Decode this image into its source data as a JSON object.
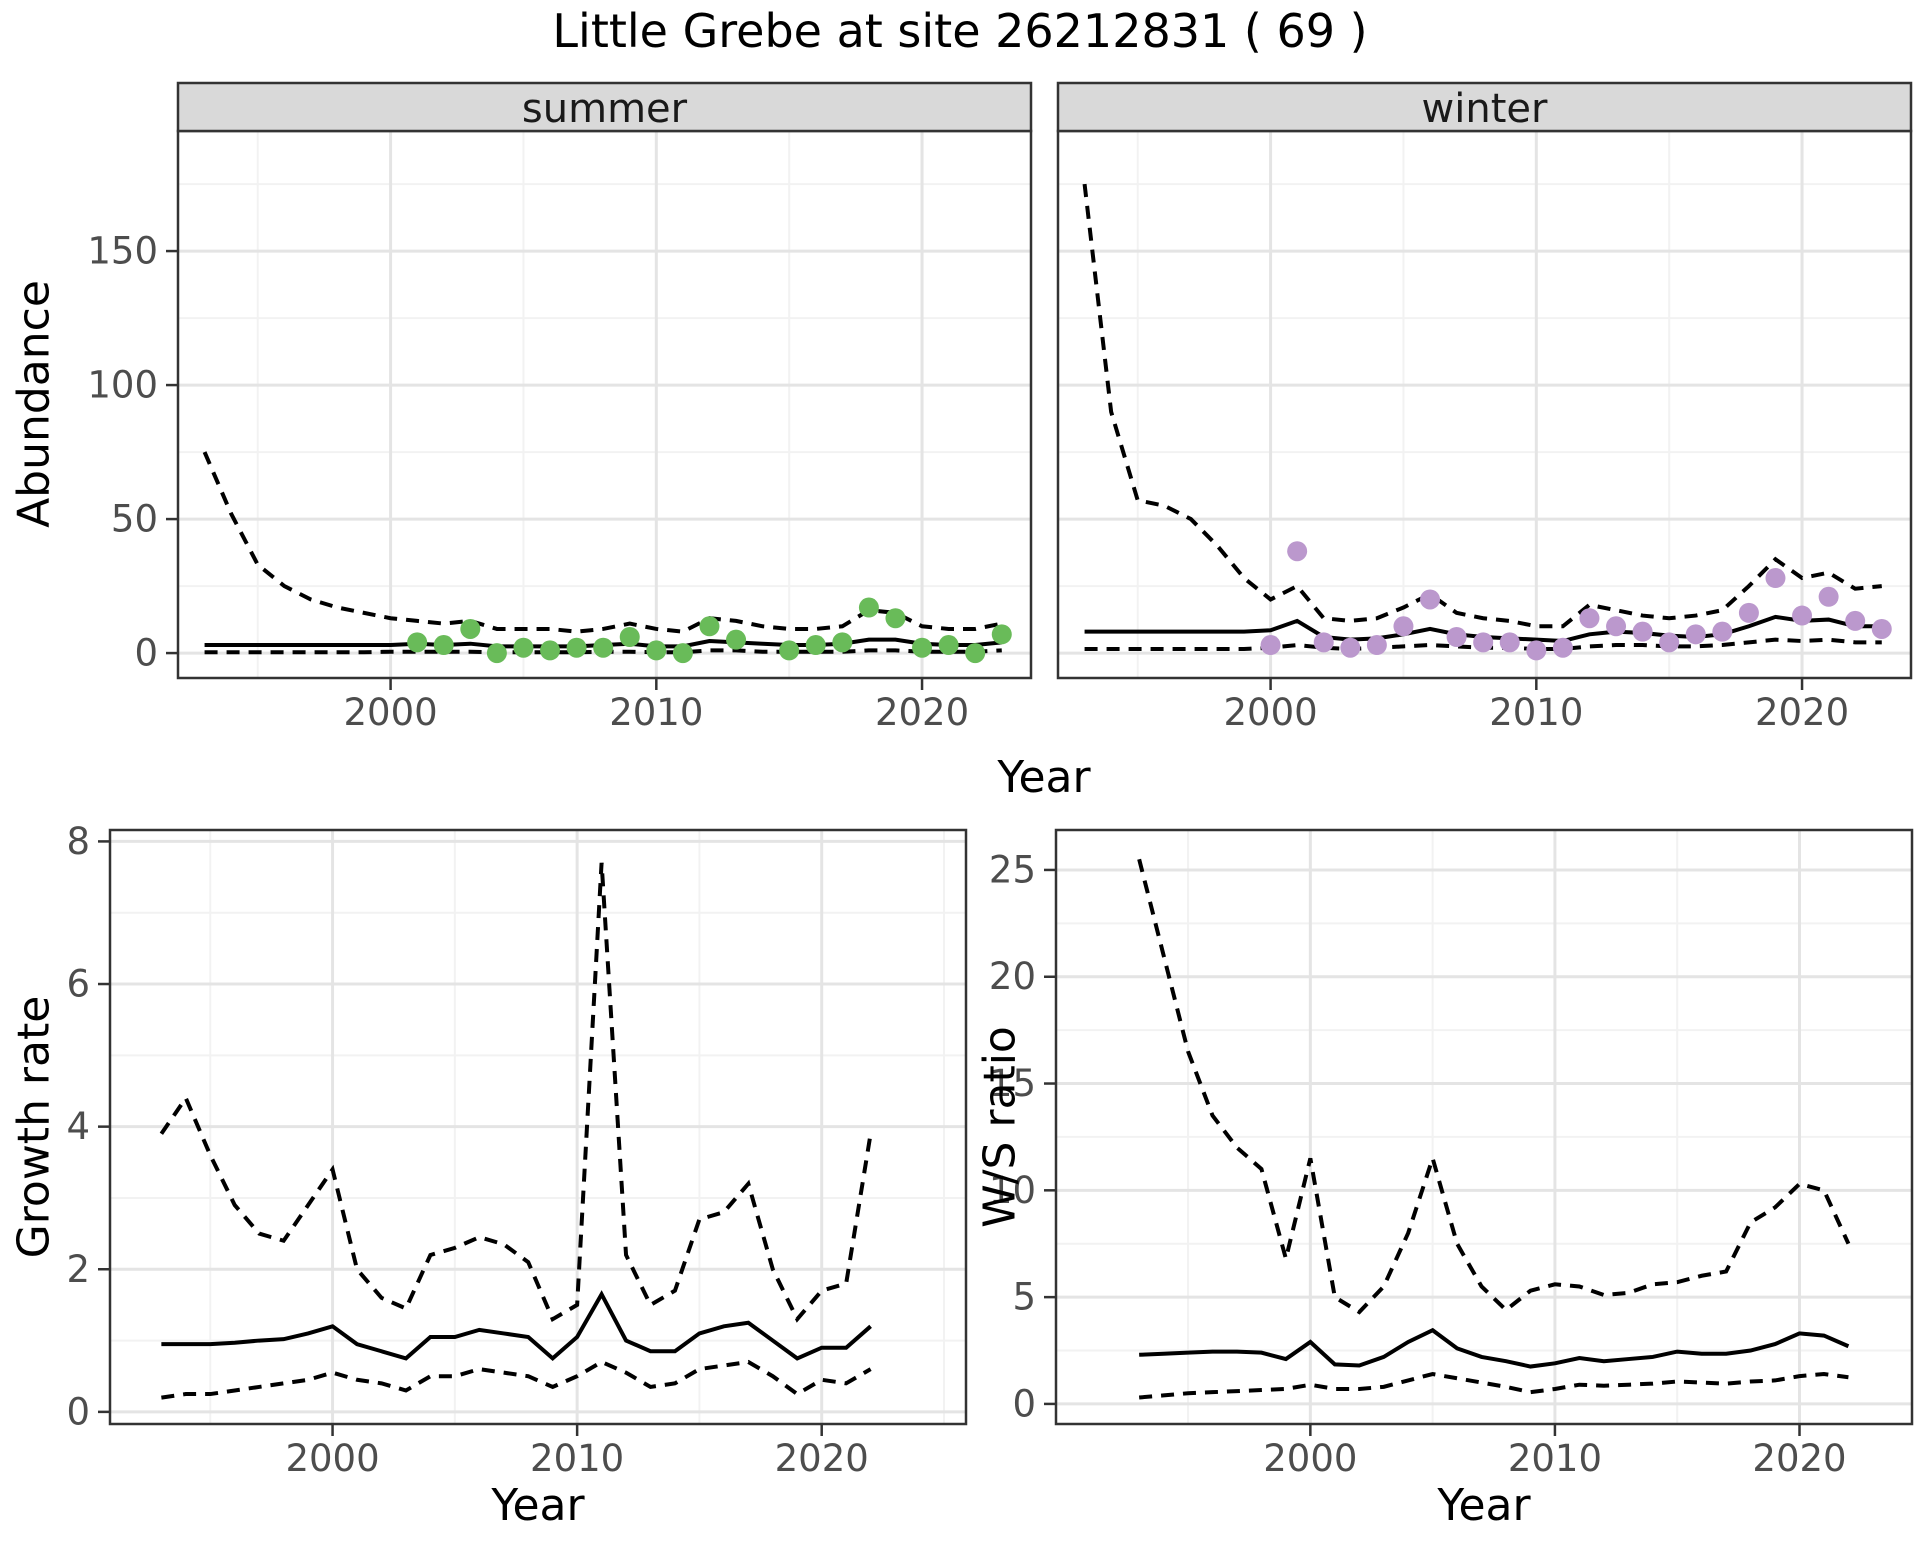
{
  "title": "Little Grebe at site 26212831 ( 69 )",
  "axes": {
    "year": "Year",
    "abundance": "Abundance",
    "growth": "Growth rate",
    "ws": "W/S ratio"
  },
  "style": {
    "point_color_summer": "#69bb59",
    "point_color_winter": "#bb98cd",
    "line_color": "#000000",
    "strip_fill": "#d9d9d9",
    "panel_border": "#333333",
    "tick_label_color": "#4d4d4d",
    "grid_major": "#e4e4e4",
    "grid_minor": "#f2f2f2"
  },
  "chart_data": [
    {
      "id": "abundance-summer",
      "type": "line+scatter",
      "facet": "summer",
      "xlabel": "Year",
      "ylabel": "Abundance",
      "xlim": [
        1992.0,
        2024.1
      ],
      "ylim": [
        -9.3,
        194.8
      ],
      "x_ticks": [
        2000,
        2010,
        2020
      ],
      "x_minor": [
        1995,
        2005,
        2015
      ],
      "y_ticks": [
        0,
        50,
        100,
        150
      ],
      "y_minor": [
        25,
        75,
        125,
        175
      ],
      "line_years": [
        1993,
        1994,
        1995,
        1996,
        1997,
        1998,
        1999,
        2000,
        2001,
        2002,
        2003,
        2004,
        2005,
        2006,
        2007,
        2008,
        2009,
        2010,
        2011,
        2012,
        2013,
        2014,
        2015,
        2016,
        2017,
        2018,
        2019,
        2020,
        2021,
        2022,
        2023
      ],
      "median": [
        3,
        3,
        3,
        3,
        3,
        3,
        3,
        3,
        3.5,
        3,
        3.5,
        2.5,
        2.5,
        2.5,
        2.5,
        3,
        3.5,
        2.5,
        2.5,
        4.5,
        4,
        3.5,
        3,
        3,
        3.5,
        5,
        5,
        3.5,
        3,
        3,
        4
      ],
      "ci_upper": [
        75,
        52,
        33,
        25,
        20,
        17,
        15,
        13,
        12,
        11,
        12,
        9,
        9,
        9,
        8,
        9,
        11,
        9,
        8,
        13,
        12,
        10,
        9,
        9,
        10,
        16,
        15,
        10,
        9,
        9,
        11
      ],
      "ci_lower": [
        0.3,
        0.3,
        0.3,
        0.3,
        0.3,
        0.3,
        0.3,
        0.5,
        0.5,
        0.5,
        0.5,
        0.3,
        0.3,
        0.3,
        0.3,
        0.5,
        0.5,
        0.3,
        0.3,
        1,
        1,
        0.5,
        0.5,
        0.5,
        0.5,
        1,
        1,
        0.5,
        0.5,
        0.5,
        1
      ],
      "points_years": [
        2001,
        2002,
        2003,
        2004,
        2005,
        2006,
        2007,
        2008,
        2009,
        2010,
        2011,
        2012,
        2013,
        2015,
        2016,
        2017,
        2018,
        2019,
        2020,
        2021,
        2022,
        2023
      ],
      "points_values": [
        4,
        3,
        9,
        0,
        2,
        1,
        2,
        2,
        6,
        1,
        0,
        10,
        5,
        1,
        3,
        4,
        17,
        13,
        2,
        3,
        0,
        7
      ],
      "point_color": "#69bb59"
    },
    {
      "id": "abundance-winter",
      "type": "line+scatter",
      "facet": "winter",
      "xlabel": "Year",
      "ylabel": "Abundance",
      "xlim": [
        1992.0,
        2024.1
      ],
      "ylim": [
        -9.3,
        194.8
      ],
      "x_ticks": [
        2000,
        2010,
        2020
      ],
      "x_minor": [
        1995,
        2005,
        2015
      ],
      "y_ticks": [
        0,
        50,
        100,
        150
      ],
      "y_minor": [
        25,
        75,
        125,
        175
      ],
      "line_years": [
        1993,
        1994,
        1995,
        1996,
        1997,
        1998,
        1999,
        2000,
        2001,
        2002,
        2003,
        2004,
        2005,
        2006,
        2007,
        2008,
        2009,
        2010,
        2011,
        2012,
        2013,
        2014,
        2015,
        2016,
        2017,
        2018,
        2019,
        2020,
        2021,
        2022,
        2023
      ],
      "median": [
        8,
        8,
        8,
        8,
        8,
        8,
        8,
        8.5,
        12,
        6,
        5,
        5.5,
        7,
        9,
        7,
        6,
        5.5,
        5,
        4.5,
        7,
        8,
        7.5,
        6.5,
        6,
        7,
        10,
        13.5,
        12,
        12.5,
        10,
        10
      ],
      "ci_upper": [
        175,
        90,
        57,
        55,
        50,
        40,
        28,
        20,
        25,
        13,
        12,
        13,
        17,
        22,
        15,
        13,
        12,
        10,
        10,
        18,
        16,
        14,
        13,
        14,
        16,
        25,
        35,
        28,
        30,
        24,
        25
      ],
      "ci_lower": [
        1.5,
        1.5,
        1.5,
        1.5,
        1.5,
        1.5,
        1.5,
        2,
        3,
        2,
        1.5,
        2,
        2.5,
        3,
        2.5,
        2,
        2,
        1.5,
        1.5,
        2.5,
        3,
        3,
        2.5,
        2.5,
        3,
        4,
        5,
        4.5,
        5,
        4,
        4
      ],
      "points_years": [
        2000,
        2001,
        2002,
        2003,
        2004,
        2005,
        2006,
        2007,
        2008,
        2009,
        2010,
        2011,
        2012,
        2013,
        2014,
        2015,
        2016,
        2017,
        2018,
        2019,
        2020,
        2021,
        2022,
        2023
      ],
      "points_values": [
        3,
        38,
        4,
        2,
        3,
        10,
        20,
        6,
        4,
        4,
        1,
        2,
        13,
        10,
        8,
        4,
        7,
        8,
        15,
        28,
        14,
        21,
        12,
        9
      ],
      "point_color": "#bb98cd"
    },
    {
      "id": "growth-rate",
      "type": "line",
      "facet": null,
      "xlabel": "Year",
      "ylabel": "Growth rate",
      "xlim": [
        1990.9,
        2025.9
      ],
      "ylim": [
        -0.17,
        8.16
      ],
      "x_ticks": [
        2000,
        2010,
        2020
      ],
      "x_minor": [
        1995,
        2005,
        2015,
        2025
      ],
      "y_ticks": [
        0,
        2,
        4,
        6,
        8
      ],
      "y_minor": [
        1,
        3,
        5,
        7
      ],
      "line_years": [
        1993,
        1994,
        1995,
        1996,
        1997,
        1998,
        1999,
        2000,
        2001,
        2002,
        2003,
        2004,
        2005,
        2006,
        2007,
        2008,
        2009,
        2010,
        2011,
        2012,
        2013,
        2014,
        2015,
        2016,
        2017,
        2018,
        2019,
        2020,
        2021,
        2022
      ],
      "median": [
        0.95,
        0.95,
        0.95,
        0.97,
        1.0,
        1.02,
        1.1,
        1.2,
        0.95,
        0.85,
        0.75,
        1.05,
        1.05,
        1.15,
        1.1,
        1.05,
        0.75,
        1.05,
        1.65,
        1.0,
        0.85,
        0.85,
        1.1,
        1.2,
        1.25,
        1.0,
        0.75,
        0.9,
        0.9,
        1.2
      ],
      "ci_upper": [
        3.9,
        4.4,
        3.6,
        2.9,
        2.5,
        2.4,
        2.9,
        3.4,
        2.0,
        1.6,
        1.45,
        2.2,
        2.3,
        2.45,
        2.35,
        2.1,
        1.3,
        1.5,
        7.7,
        2.2,
        1.5,
        1.7,
        2.7,
        2.8,
        3.2,
        2.0,
        1.3,
        1.7,
        1.8,
        3.9
      ],
      "ci_lower": [
        0.2,
        0.25,
        0.25,
        0.3,
        0.35,
        0.4,
        0.45,
        0.55,
        0.45,
        0.4,
        0.3,
        0.5,
        0.5,
        0.6,
        0.55,
        0.5,
        0.35,
        0.5,
        0.7,
        0.55,
        0.35,
        0.4,
        0.6,
        0.65,
        0.7,
        0.5,
        0.25,
        0.45,
        0.4,
        0.6
      ],
      "points_years": [],
      "points_values": [],
      "point_color": null
    },
    {
      "id": "ws-ratio",
      "type": "line",
      "facet": null,
      "xlabel": "Year",
      "ylabel": "W/S ratio",
      "xlim": [
        1989.6,
        2024.6
      ],
      "ylim": [
        -0.94,
        26.87
      ],
      "x_ticks": [
        2000,
        2010,
        2020
      ],
      "x_minor": [
        1995,
        2005,
        2015
      ],
      "y_ticks": [
        0,
        5,
        10,
        15,
        20,
        25
      ],
      "y_minor": [
        2.5,
        7.5,
        12.5,
        17.5,
        22.5
      ],
      "line_years": [
        1993,
        1994,
        1995,
        1996,
        1997,
        1998,
        1999,
        2000,
        2001,
        2002,
        2003,
        2004,
        2005,
        2006,
        2007,
        2008,
        2009,
        2010,
        2011,
        2012,
        2013,
        2014,
        2015,
        2016,
        2017,
        2018,
        2019,
        2020,
        2021,
        2022
      ],
      "median": [
        2.3,
        2.35,
        2.4,
        2.45,
        2.45,
        2.4,
        2.1,
        2.9,
        1.85,
        1.8,
        2.2,
        2.9,
        3.45,
        2.6,
        2.2,
        2.0,
        1.75,
        1.9,
        2.15,
        2.0,
        2.1,
        2.2,
        2.45,
        2.35,
        2.35,
        2.5,
        2.8,
        3.3,
        3.2,
        2.7
      ],
      "ci_upper": [
        25.5,
        21,
        16.5,
        13.5,
        12,
        11,
        6.8,
        11.5,
        5.0,
        4.3,
        5.5,
        8.0,
        11.5,
        7.5,
        5.5,
        4.4,
        5.3,
        5.6,
        5.5,
        5.1,
        5.2,
        5.6,
        5.7,
        6.0,
        6.2,
        8.5,
        9.2,
        10.3,
        10.0,
        7.5
      ],
      "ci_lower": [
        0.3,
        0.4,
        0.5,
        0.55,
        0.6,
        0.65,
        0.7,
        0.9,
        0.7,
        0.7,
        0.8,
        1.1,
        1.4,
        1.2,
        1.0,
        0.8,
        0.55,
        0.7,
        0.9,
        0.85,
        0.9,
        0.95,
        1.05,
        1.0,
        0.95,
        1.05,
        1.1,
        1.3,
        1.4,
        1.25
      ],
      "points_years": [],
      "points_values": [],
      "point_color": null
    }
  ]
}
